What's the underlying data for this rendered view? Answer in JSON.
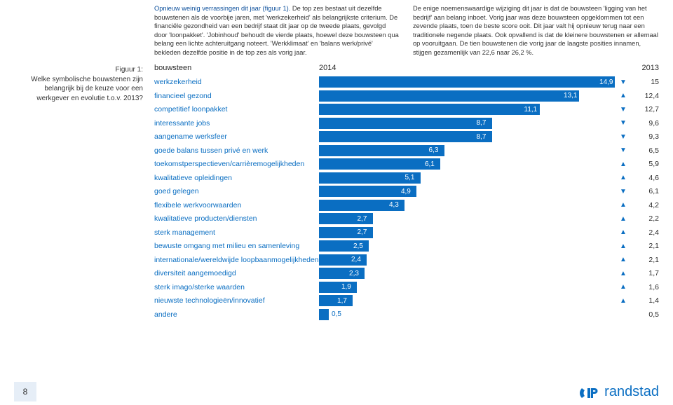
{
  "colors": {
    "brand": "#0a6ec2",
    "heading": "#0a4e9b",
    "text": "#333333",
    "bg": "#ffffff",
    "pagenum_bg": "#e6eef7"
  },
  "text": {
    "col1_first": "Opnieuw weinig verrassingen dit jaar (figuur 1).",
    "col1_rest": " De top zes bestaat uit dezelfde bouwstenen als de voorbije jaren, met 'werkzekerheid' als belangrijkste criterium. De financiële gezondheid van een bedrijf staat dit jaar op de tweede plaats, gevolgd door 'loonpakket'. 'Jobinhoud' behoudt de vierde plaats, hoewel deze bouwsteen qua belang een lichte achteruitgang noteert. 'Werkklimaat' en 'balans werk/privé' bekleden dezelfde positie in de top zes als vorig jaar.",
    "col2": "De enige noemenswaardige wijziging dit jaar is dat de bouwsteen 'ligging van het bedrijf' aan belang inboet. Vorig jaar was deze bouwsteen opgeklommen tot een zevende plaats, toen de beste score ooit. Dit jaar valt hij opnieuw terug naar een traditionele negende plaats. Ook opvallend is dat de kleinere bouwstenen er allemaal op vooruitgaan. De tien bouwstenen die vorig jaar de laagste posities innamen, stijgen gezamenlijk van 22,6 naar 26,2 %."
  },
  "sidebar": "Figuur 1:\nWelke symbolische bouwstenen zijn belangrijk bij de keuze voor een werkgever en evolutie t.o.v. 2013?",
  "chart": {
    "header": {
      "label": "bouwsteen",
      "y14": "2014",
      "y13": "2013"
    },
    "max": 15,
    "bar_color": "#0a6ec2",
    "label_color": "#0a6ec2",
    "label_fontsize": 10.5,
    "value_fontsize": 10,
    "rows": [
      {
        "label": "werkzekerheid",
        "v14": "14,9",
        "pct": 99.3,
        "dir": "down",
        "v13": "15"
      },
      {
        "label": "financieel gezond",
        "v14": "13,1",
        "pct": 87.3,
        "dir": "up",
        "v13": "12,4"
      },
      {
        "label": "competitief loonpakket",
        "v14": "11,1",
        "pct": 74.0,
        "dir": "down",
        "v13": "12,7"
      },
      {
        "label": "interessante jobs",
        "v14": "8,7",
        "pct": 58.0,
        "dir": "down",
        "v13": "9,6"
      },
      {
        "label": "aangename werksfeer",
        "v14": "8,7",
        "pct": 58.0,
        "dir": "down",
        "v13": "9,3"
      },
      {
        "label": "goede balans tussen privé en werk",
        "v14": "6,3",
        "pct": 42.0,
        "dir": "down",
        "v13": "6,5"
      },
      {
        "label": "toekomstperspectieven/carrièremogelijkheden",
        "v14": "6,1",
        "pct": 40.7,
        "dir": "up",
        "v13": "5,9"
      },
      {
        "label": "kwalitatieve opleidingen",
        "v14": "5,1",
        "pct": 34.0,
        "dir": "up",
        "v13": "4,6"
      },
      {
        "label": "goed gelegen",
        "v14": "4,9",
        "pct": 32.7,
        "dir": "down",
        "v13": "6,1"
      },
      {
        "label": "flexibele werkvoorwaarden",
        "v14": "4,3",
        "pct": 28.7,
        "dir": "up",
        "v13": "4,2"
      },
      {
        "label": "kwalitatieve producten/diensten",
        "v14": "2,7",
        "pct": 18.0,
        "dir": "up",
        "v13": "2,2"
      },
      {
        "label": "sterk management",
        "v14": "2,7",
        "pct": 18.0,
        "dir": "up",
        "v13": "2,4"
      },
      {
        "label": "bewuste omgang met milieu en samenleving",
        "v14": "2,5",
        "pct": 16.7,
        "dir": "up",
        "v13": "2,1"
      },
      {
        "label": "internationale/wereldwijde loopbaanmogelijkheden",
        "v14": "2,4",
        "pct": 16.0,
        "dir": "up",
        "v13": "2,1"
      },
      {
        "label": "diversiteit aangemoedigd",
        "v14": "2,3",
        "pct": 15.3,
        "dir": "up",
        "v13": "1,7"
      },
      {
        "label": "sterk imago/sterke waarden",
        "v14": "1,9",
        "pct": 12.7,
        "dir": "up",
        "v13": "1,6"
      },
      {
        "label": "nieuwste technologieën/innovatief",
        "v14": "1,7",
        "pct": 11.3,
        "dir": "up",
        "v13": "1,4"
      },
      {
        "label": "andere",
        "v14": "0,5",
        "pct": 3.3,
        "dir": "",
        "v13": "0,5"
      }
    ]
  },
  "footer": {
    "page_number": "8",
    "logo_text": "randstad"
  }
}
